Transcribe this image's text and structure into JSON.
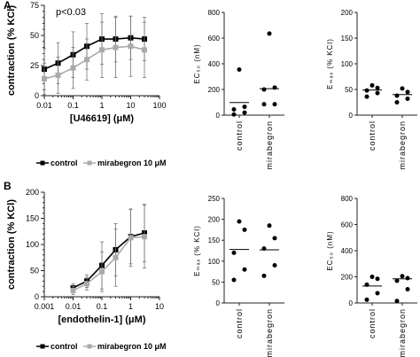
{
  "panel_labels": {
    "a": "A",
    "b": "B"
  },
  "colors": {
    "control": "#000000",
    "mirabegron": "#aaaaaa",
    "axis": "#222222",
    "errorbar": "#777777"
  },
  "legend": {
    "control": "control",
    "mirabegron": "mirabegron 10 μM"
  },
  "annotations": {
    "a_p_value": "p<0.03"
  },
  "chart_data": [
    {
      "id": "A-concentration-response",
      "type": "line",
      "xscale": "log",
      "xlabel": "[U46619] (μM)",
      "ylabel": "contraction (% KCl)",
      "xlim": [
        0.01,
        100
      ],
      "ylim": [
        0,
        75
      ],
      "xticks": [
        0.01,
        0.1,
        1,
        10,
        100
      ],
      "xtick_labels": [
        "0.01",
        "0.1",
        "1",
        "10",
        "100"
      ],
      "yticks": [
        0,
        25,
        50,
        75
      ],
      "yaxis_label_step": 25,
      "yaxis_minor_step": 5,
      "legend_position": "bottom",
      "series": [
        {
          "name": "control",
          "x": [
            0.01,
            0.03,
            0.1,
            0.3,
            1,
            3,
            10,
            30
          ],
          "y": [
            22,
            27,
            34,
            41,
            47,
            47,
            48,
            47
          ],
          "err": [
            17,
            17,
            19,
            19,
            21,
            19,
            18,
            18
          ]
        },
        {
          "name": "mirabegron 10 μM",
          "x": [
            0.01,
            0.03,
            0.1,
            0.3,
            1,
            3,
            10,
            30
          ],
          "y": [
            14,
            17,
            23,
            30,
            38,
            40,
            41,
            38
          ],
          "err": [
            13,
            15,
            17,
            17,
            23,
            25,
            25,
            23
          ]
        }
      ]
    },
    {
      "id": "A-EC50",
      "type": "scatter",
      "ylabel": "EC₅₀ (nM)",
      "ylim": [
        0,
        800
      ],
      "yticks": [
        0,
        200,
        400,
        600,
        800
      ],
      "categories": [
        "control",
        "mirabegron"
      ],
      "points": [
        [
          5,
          20,
          45,
          65,
          355
        ],
        [
          85,
          85,
          200,
          215,
          635
        ]
      ],
      "means": [
        98,
        206
      ]
    },
    {
      "id": "A-Emax",
      "type": "scatter",
      "ylabel": "Eₘₐₓ (% KCl)",
      "ylim": [
        0,
        200
      ],
      "yticks": [
        0,
        50,
        100,
        150,
        200
      ],
      "categories": [
        "control",
        "mirabegron"
      ],
      "points": [
        [
          36,
          43,
          48,
          53,
          58
        ],
        [
          25,
          32,
          38,
          45,
          52
        ]
      ],
      "means": [
        49,
        40
      ]
    },
    {
      "id": "B-concentration-response",
      "type": "line",
      "xscale": "log",
      "xlabel": "[endothelin-1] (μM)",
      "ylabel": "contraction (% KCl)",
      "xlim": [
        0.001,
        10
      ],
      "ylim": [
        0,
        200
      ],
      "xticks": [
        0.001,
        0.01,
        0.1,
        1,
        10
      ],
      "xtick_labels": [
        "0.001",
        "0.01",
        "0.1",
        "1",
        "10"
      ],
      "yticks": [
        0,
        50,
        100,
        150,
        200
      ],
      "yaxis_label_step": 50,
      "yaxis_minor_step": 10,
      "legend_position": "bottom",
      "series": [
        {
          "name": "control",
          "x": [
            0.01,
            0.03,
            0.1,
            0.3,
            1,
            3
          ],
          "y": [
            17,
            30,
            60,
            90,
            115,
            122
          ],
          "err": [
            8,
            12,
            45,
            50,
            52,
            55
          ]
        },
        {
          "name": "mirabegron 10 μM",
          "x": [
            0.01,
            0.03,
            0.1,
            0.3,
            1,
            3
          ],
          "y": [
            12,
            25,
            48,
            75,
            113,
            115
          ],
          "err": [
            8,
            12,
            38,
            55,
            55,
            60
          ]
        }
      ]
    },
    {
      "id": "B-Emax",
      "type": "scatter",
      "ylabel": "Eₘₐₓ (% KCl)",
      "ylim": [
        0,
        250
      ],
      "yticks": [
        0,
        50,
        100,
        150,
        200,
        250
      ],
      "categories": [
        "control",
        "mirabegron"
      ],
      "points": [
        [
          55,
          80,
          120,
          175,
          195
        ],
        [
          65,
          90,
          130,
          155,
          185
        ]
      ],
      "means": [
        128,
        127
      ]
    },
    {
      "id": "B-EC50",
      "type": "scatter",
      "ylabel": "EC₅₀ (nM)",
      "ylim": [
        0,
        800
      ],
      "yticks": [
        0,
        200,
        400,
        600,
        800
      ],
      "categories": [
        "control",
        "mirabegron"
      ],
      "points": [
        [
          25,
          75,
          140,
          185,
          200
        ],
        [
          15,
          105,
          170,
          190,
          205
        ]
      ],
      "means": [
        130,
        185
      ]
    }
  ]
}
